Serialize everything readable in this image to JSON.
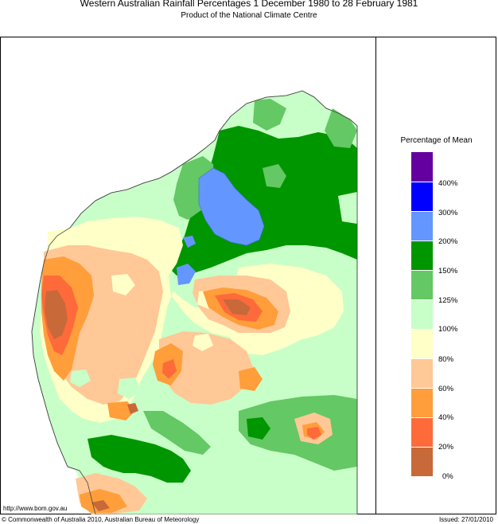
{
  "header": {
    "title": "Western Australian Rainfall Percentages 1 December 1980 to 28 February 1981",
    "subtitle": "Product of the National Climate Centre"
  },
  "legend": {
    "title": "Percentage of Mean",
    "bands": [
      {
        "label": "0%-20%",
        "color": "#c8693a"
      },
      {
        "label": "20%-40%",
        "color": "#ff6a3a"
      },
      {
        "label": "40%-60%",
        "color": "#ff9e3a"
      },
      {
        "label": "60%-80%",
        "color": "#ffc896"
      },
      {
        "label": "80%-100%",
        "color": "#ffffc8"
      },
      {
        "label": "100%-125%",
        "color": "#c8ffc8"
      },
      {
        "label": "125%-150%",
        "color": "#64c864"
      },
      {
        "label": "150%-200%",
        "color": "#009600"
      },
      {
        "label": "200%-300%",
        "color": "#6496ff"
      },
      {
        "label": "300%-400%",
        "color": "#0000ff"
      },
      {
        "label": "400%+",
        "color": "#6400a0"
      }
    ],
    "ticks": [
      "400%",
      "300%",
      "200%",
      "150%",
      "125%",
      "100%",
      "80%",
      "60%",
      "40%",
      "20%",
      "0%"
    ]
  },
  "footer": {
    "url": "http://www.bom.gov.au",
    "copyright": "© Commonwealth of Australia 2010, Australian Bureau of Meteorology",
    "issued": "Issued: 27/01/2010"
  }
}
